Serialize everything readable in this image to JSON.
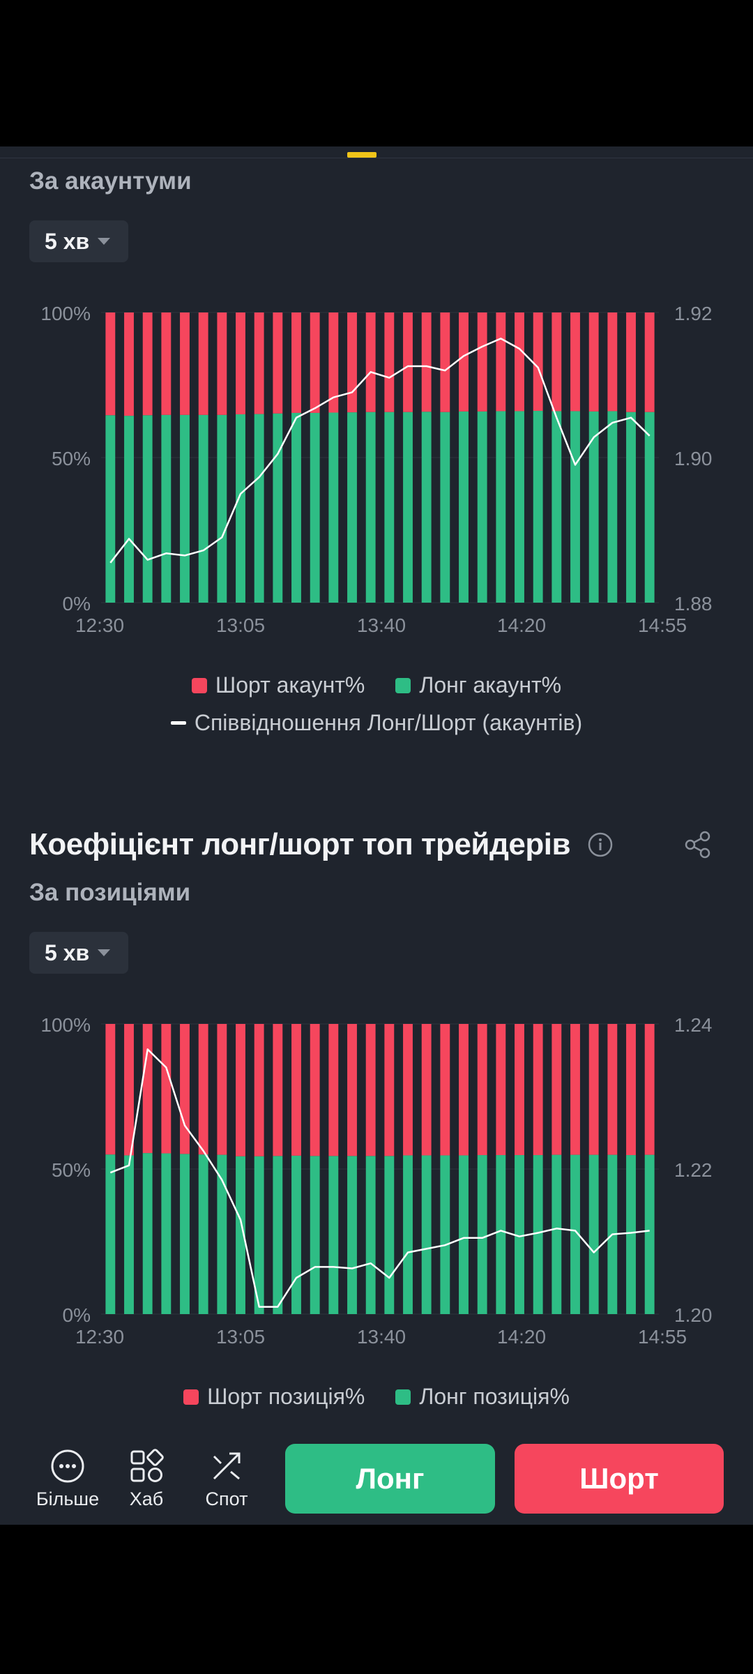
{
  "colors": {
    "short": "#f6465d",
    "long": "#2ebd85",
    "ratio_line": "#ffffff",
    "accent": "#f0c419",
    "bg": "#1f242d"
  },
  "accounts_section": {
    "subtitle": "За акаунтуми",
    "interval": "5 хв",
    "legend": {
      "short": "Шорт акаунт%",
      "long": "Лонг акаунт%",
      "ratio": "Співвідношення Лонг/Шорт (акаунтів)"
    }
  },
  "positions_section": {
    "title": "Коефіцієнт лонг/шорт топ трейдерів",
    "subtitle": "За позиціями",
    "interval": "5 хв",
    "legend": {
      "short": "Шорт позиція%",
      "long": "Лонг позиція%"
    }
  },
  "chart_data": [
    {
      "type": "bar",
      "title": "",
      "x_tick_labels": [
        "12:30",
        "13:05",
        "13:40",
        "14:20",
        "14:55"
      ],
      "y_left_ticks": [
        "100%",
        "50%",
        "0%"
      ],
      "y_right_ticks": [
        "1.92",
        "1.90",
        "1.88"
      ],
      "y_left_range": [
        0,
        100
      ],
      "y_right_range": [
        1.88,
        1.92
      ],
      "legend_position": "bottom-center",
      "series": [
        {
          "name": "Шорт акаунт%",
          "kind": "stacked-bar-top",
          "values": [
            35.4,
            35.6,
            35.4,
            35.3,
            35.3,
            35.3,
            35.3,
            35.1,
            35.0,
            34.8,
            34.6,
            34.6,
            34.5,
            34.4,
            34.3,
            34.3,
            34.3,
            34.2,
            34.3,
            34.1,
            34.1,
            34.0,
            34.0,
            33.9,
            34.0,
            34.0,
            34.1,
            34.0,
            34.3,
            34.3
          ]
        },
        {
          "name": "Лонг акаунт%",
          "kind": "stacked-bar-bottom",
          "values": [
            64.6,
            64.4,
            64.6,
            64.7,
            64.7,
            64.7,
            64.7,
            64.9,
            65.0,
            65.2,
            65.4,
            65.4,
            65.5,
            65.6,
            65.7,
            65.7,
            65.7,
            65.8,
            65.7,
            65.9,
            65.9,
            66.0,
            66.0,
            66.1,
            66.0,
            66.0,
            65.9,
            66.0,
            65.7,
            65.7
          ]
        },
        {
          "name": "Співвідношення Лонг/Шорт (акаунтів)",
          "kind": "line-right-axis",
          "values": [
            1.8855,
            1.8888,
            1.8859,
            1.8868,
            1.8865,
            1.8872,
            1.889,
            1.895,
            1.8973,
            1.9005,
            1.9055,
            1.9068,
            1.9083,
            1.909,
            1.9118,
            1.911,
            1.9126,
            1.9126,
            1.912,
            1.914,
            1.9153,
            1.9164,
            1.915,
            1.9124,
            1.9055,
            1.899,
            1.9028,
            1.9048,
            1.9055,
            1.903
          ]
        }
      ]
    },
    {
      "type": "bar",
      "title": "",
      "x_tick_labels": [
        "12:30",
        "13:05",
        "13:40",
        "14:20",
        "14:55"
      ],
      "y_left_ticks": [
        "100%",
        "50%",
        "0%"
      ],
      "y_right_ticks": [
        "1.24",
        "1.22",
        "1.20"
      ],
      "y_left_range": [
        0,
        100
      ],
      "y_right_range": [
        1.2,
        1.24
      ],
      "legend_position": "bottom-center",
      "series": [
        {
          "name": "Шорт позиція%",
          "kind": "stacked-bar-top",
          "values": [
            45.0,
            45.3,
            44.5,
            44.6,
            44.8,
            45.0,
            45.1,
            45.6,
            45.6,
            45.5,
            45.4,
            45.5,
            45.5,
            45.5,
            45.5,
            45.5,
            45.3,
            45.3,
            45.3,
            45.3,
            45.2,
            45.2,
            45.2,
            45.2,
            45.1,
            45.1,
            45.1,
            45.1,
            45.2,
            45.1
          ]
        },
        {
          "name": "Лонг позиція%",
          "kind": "stacked-bar-bottom",
          "values": [
            55.0,
            54.7,
            55.5,
            55.4,
            55.2,
            55.0,
            54.9,
            54.4,
            54.4,
            54.5,
            54.6,
            54.5,
            54.5,
            54.5,
            54.5,
            54.5,
            54.7,
            54.7,
            54.7,
            54.7,
            54.8,
            54.8,
            54.8,
            54.8,
            54.9,
            54.9,
            54.9,
            54.9,
            54.8,
            54.9
          ]
        }
      ],
      "line": {
        "name": "",
        "kind": "line-right-axis",
        "values": [
          1.2195,
          1.2205,
          1.2365,
          1.234,
          1.226,
          1.2225,
          1.2185,
          1.213,
          1.201,
          1.201,
          1.205,
          1.2065,
          1.2065,
          1.2063,
          1.207,
          1.205,
          1.2085,
          1.209,
          1.2095,
          1.2105,
          1.2105,
          1.2115,
          1.2107,
          1.2112,
          1.2118,
          1.2115,
          1.2085,
          1.211,
          1.2112,
          1.2115
        ]
      }
    }
  ],
  "bottom_nav": {
    "more": "Більше",
    "hub": "Хаб",
    "spot": "Спот",
    "long_button": "Лонг",
    "short_button": "Шорт"
  }
}
